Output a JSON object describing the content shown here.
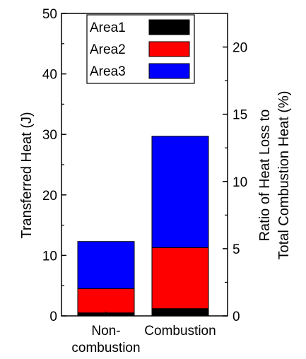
{
  "chart_data": {
    "type": "bar",
    "stacked": true,
    "categories": [
      "Non-\ncombustion",
      "Combustion"
    ],
    "series": [
      {
        "name": "Area1",
        "color": "#000000",
        "values": [
          0.5,
          1.2
        ]
      },
      {
        "name": "Area2",
        "color": "#ff0000",
        "values": [
          4.0,
          10.1
        ]
      },
      {
        "name": "Area3",
        "color": "#0000ff",
        "values": [
          7.8,
          18.4
        ]
      }
    ],
    "ylabel": "Transferred Heat (J)",
    "ylim": [
      0,
      50
    ],
    "yticks": [
      0,
      10,
      20,
      30,
      40,
      50
    ],
    "y2label": [
      "Ratio of Heat Loss to",
      "Total Combustion Heat (%)"
    ],
    "y2lim": [
      0,
      22.5
    ],
    "y2ticks": [
      0,
      5,
      10,
      15,
      20
    ],
    "legend_position": "top-left",
    "grid": false
  }
}
